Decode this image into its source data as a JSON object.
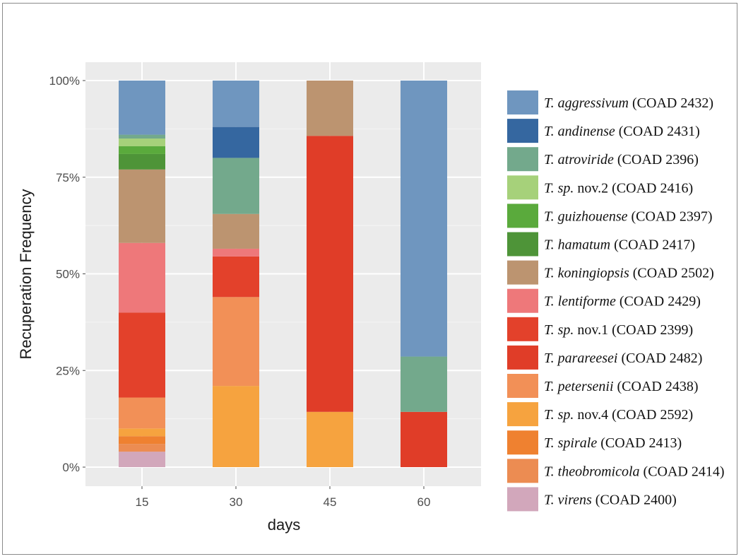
{
  "chart_data": {
    "type": "bar",
    "stacked": true,
    "percent": true,
    "xlabel": "days",
    "ylabel": "Recuperation Frequency",
    "categories": [
      "15",
      "30",
      "45",
      "60"
    ],
    "yticks": [
      "0%",
      "25%",
      "50%",
      "75%",
      "100%"
    ],
    "ylim": [
      0,
      1
    ],
    "grid": true,
    "legend_position": "right",
    "series": [
      {
        "name": "T. aggressivum",
        "code": "(COAD 2432)",
        "color": "#6f96bf",
        "values": [
          0.14,
          0.12,
          0,
          0.714
        ]
      },
      {
        "name": "T. andinense",
        "code": "(COAD 2431)",
        "color": "#3567a0",
        "values": [
          0,
          0.08,
          0,
          0
        ]
      },
      {
        "name": "T. atroviride",
        "code": "(COAD 2396)",
        "color": "#73a98c",
        "values": [
          0.01,
          0.145,
          0,
          0.143
        ]
      },
      {
        "name": "T. sp. nov.2",
        "code": "(COAD 2416)",
        "color": "#a6d17a",
        "values": [
          0.02,
          0,
          0,
          0
        ]
      },
      {
        "name": "T. guizhouense",
        "code": "(COAD 2397)",
        "color": "#5aaa3c",
        "values": [
          0.02,
          0,
          0,
          0
        ]
      },
      {
        "name": "T. hamatum",
        "code": "(COAD 2417)",
        "color": "#4e9438",
        "values": [
          0.04,
          0,
          0,
          0
        ]
      },
      {
        "name": "T. koningiopsis",
        "code": "(COAD 2502)",
        "color": "#bc9470",
        "values": [
          0.19,
          0.09,
          0.143,
          0
        ]
      },
      {
        "name": "T. lentiforme",
        "code": "(COAD 2429)",
        "color": "#ee787a",
        "values": [
          0.18,
          0.02,
          0,
          0
        ]
      },
      {
        "name": "T. sp. nov.1",
        "code": "(COAD 2399)",
        "color": "#e3412b",
        "values": [
          0.22,
          0.105,
          0,
          0
        ]
      },
      {
        "name": "T. parareesei",
        "code": "(COAD 2482)",
        "color": "#e03d28",
        "values": [
          0,
          0,
          0.714,
          0.143
        ]
      },
      {
        "name": "T. petersenii",
        "code": "(COAD 2438)",
        "color": "#f29057",
        "values": [
          0.08,
          0.23,
          0,
          0
        ]
      },
      {
        "name": "T. sp. nov.4",
        "code": "(COAD 2592)",
        "color": "#f6a33f",
        "values": [
          0.02,
          0.21,
          0.143,
          0
        ]
      },
      {
        "name": "T. spirale",
        "code": "(COAD 2413)",
        "color": "#ef8130",
        "values": [
          0.02,
          0,
          0,
          0
        ]
      },
      {
        "name": "T. theobromicola",
        "code": "(COAD 2414)",
        "color": "#ec8c52",
        "values": [
          0.02,
          0,
          0,
          0
        ]
      },
      {
        "name": "T. virens",
        "code": "(COAD 2400)",
        "color": "#d2a7bb",
        "values": [
          0.04,
          0,
          0,
          0
        ]
      }
    ]
  }
}
